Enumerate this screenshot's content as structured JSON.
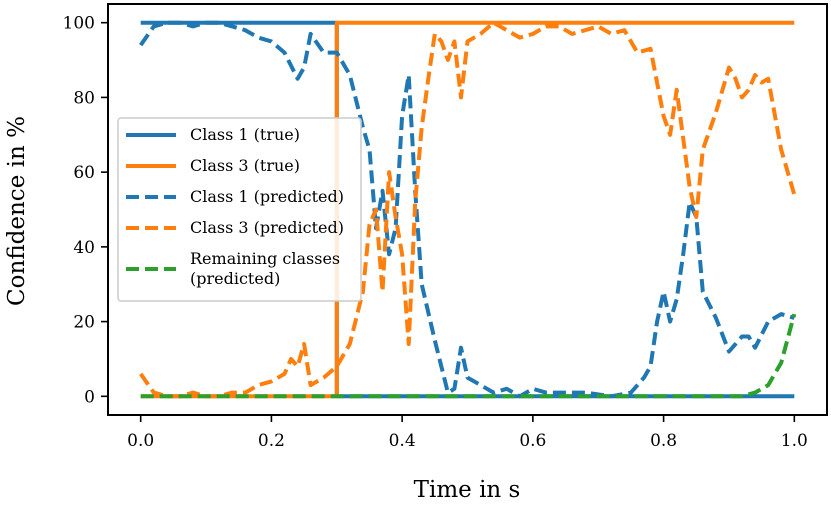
{
  "chart_data": {
    "type": "line",
    "xlabel": "Time in s",
    "ylabel": "Confidence in %",
    "xlim": [
      -0.05,
      1.05
    ],
    "ylim": [
      -5,
      105
    ],
    "xticks": [
      0.0,
      0.2,
      0.4,
      0.6,
      0.8,
      1.0
    ],
    "xtick_labels": [
      "0.0",
      "0.2",
      "0.4",
      "0.6",
      "0.8",
      "1.0"
    ],
    "yticks": [
      0,
      20,
      40,
      60,
      80,
      100
    ],
    "ytick_labels": [
      "0",
      "20",
      "40",
      "60",
      "80",
      "100"
    ],
    "grid": false,
    "legend_position": "center-left",
    "series": [
      {
        "name": "Class 1 (true)",
        "color": "#1f77b4",
        "style": "solid",
        "x": [
          0.0,
          0.3,
          0.3,
          1.0
        ],
        "y": [
          100,
          100,
          0,
          0
        ]
      },
      {
        "name": "Class 3 (true)",
        "color": "#ff7f0e",
        "style": "solid",
        "x": [
          0.0,
          0.3,
          0.3,
          1.0
        ],
        "y": [
          0,
          0,
          100,
          100
        ]
      },
      {
        "name": "Class 1 (predicted)",
        "color": "#1f77b4",
        "style": "dashed",
        "x": [
          0.0,
          0.02,
          0.04,
          0.06,
          0.08,
          0.1,
          0.12,
          0.14,
          0.16,
          0.18,
          0.2,
          0.22,
          0.24,
          0.25,
          0.26,
          0.28,
          0.3,
          0.32,
          0.34,
          0.35,
          0.36,
          0.37,
          0.38,
          0.39,
          0.4,
          0.41,
          0.42,
          0.43,
          0.45,
          0.47,
          0.48,
          0.49,
          0.5,
          0.52,
          0.54,
          0.56,
          0.58,
          0.6,
          0.62,
          0.65,
          0.68,
          0.72,
          0.75,
          0.77,
          0.78,
          0.79,
          0.8,
          0.81,
          0.82,
          0.83,
          0.84,
          0.85,
          0.86,
          0.88,
          0.9,
          0.92,
          0.93,
          0.94,
          0.96,
          0.98,
          1.0
        ],
        "y": [
          94,
          99,
          100,
          100,
          99,
          100,
          100,
          99,
          98,
          96,
          95,
          92,
          85,
          88,
          97,
          92,
          92,
          86,
          72,
          66,
          45,
          55,
          38,
          45,
          75,
          86,
          55,
          30,
          15,
          1,
          2,
          13,
          5,
          3,
          1,
          2,
          0,
          2,
          1,
          1,
          1,
          0,
          1,
          5,
          8,
          20,
          28,
          20,
          26,
          38,
          52,
          48,
          28,
          21,
          12,
          16,
          16,
          13,
          20,
          22,
          21
        ]
      },
      {
        "name": "Class 3 (predicted)",
        "color": "#ff7f0e",
        "style": "dashed",
        "x": [
          0.0,
          0.02,
          0.04,
          0.06,
          0.08,
          0.1,
          0.12,
          0.14,
          0.16,
          0.18,
          0.2,
          0.22,
          0.23,
          0.24,
          0.25,
          0.26,
          0.28,
          0.3,
          0.32,
          0.34,
          0.35,
          0.36,
          0.37,
          0.38,
          0.39,
          0.4,
          0.41,
          0.42,
          0.43,
          0.44,
          0.45,
          0.46,
          0.47,
          0.48,
          0.49,
          0.5,
          0.52,
          0.54,
          0.56,
          0.58,
          0.6,
          0.62,
          0.64,
          0.66,
          0.68,
          0.7,
          0.72,
          0.74,
          0.76,
          0.78,
          0.8,
          0.81,
          0.82,
          0.84,
          0.85,
          0.86,
          0.88,
          0.9,
          0.91,
          0.92,
          0.93,
          0.94,
          0.95,
          0.96,
          0.98,
          1.0
        ],
        "y": [
          6,
          1,
          0,
          0,
          1,
          0,
          0,
          1,
          1,
          3,
          4,
          6,
          10,
          8,
          14,
          3,
          5,
          8,
          14,
          28,
          46,
          50,
          28,
          60,
          48,
          38,
          14,
          52,
          72,
          85,
          97,
          95,
          90,
          95,
          80,
          95,
          97,
          100,
          98,
          96,
          97,
          99,
          99,
          97,
          98,
          99,
          97,
          98,
          92,
          93,
          75,
          70,
          82,
          56,
          48,
          66,
          76,
          88,
          85,
          80,
          82,
          86,
          84,
          85,
          66,
          54
        ]
      },
      {
        "name": "Remaining classes\n(predicted)",
        "color": "#2ca02c",
        "style": "dashed",
        "x": [
          0.0,
          0.05,
          0.1,
          0.2,
          0.3,
          0.4,
          0.5,
          0.6,
          0.7,
          0.8,
          0.9,
          0.92,
          0.94,
          0.96,
          0.98,
          1.0
        ],
        "y": [
          0,
          0,
          0,
          0,
          0,
          0,
          0,
          0,
          0,
          0,
          0,
          0,
          1,
          3,
          9,
          22
        ]
      }
    ]
  }
}
